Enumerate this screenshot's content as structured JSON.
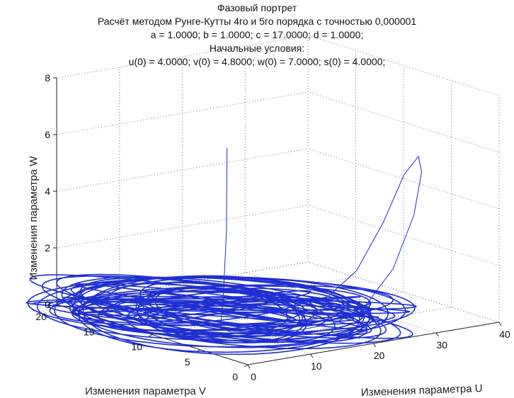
{
  "chart_data": {
    "type": "3d-line",
    "title": "Фазовый портрет",
    "subtitle_lines": [
      "Расчёт методом Рунге-Кутты 4го и 5го порядка с точностью 0,000001",
      "a = 1.0000; b = 1.0000; c = 17.0000; d = 1.0000;",
      "Начальные условия:",
      "u(0) = 4.0000; v(0) = 4.8000; w(0) = 7.0000; s(0) = 4.0000;"
    ],
    "xlabel": "Изменения параметра U",
    "ylabel": "Изменения параметра V",
    "zlabel": "Изменения параметра W",
    "xlim": [
      0,
      40
    ],
    "ylim": [
      0,
      20
    ],
    "zlim": [
      0,
      8
    ],
    "xticks": [
      "0",
      "10",
      "20",
      "30",
      "40"
    ],
    "yticks": [
      "0",
      "5",
      "10",
      "15",
      "20"
    ],
    "zticks": [
      "0",
      "2",
      "4",
      "6",
      "8"
    ],
    "grid": true,
    "line_color": "#1f2fd0",
    "series": [
      {
        "points": [
          [
            4.0,
            4.8,
            7.0
          ],
          [
            4.2,
            5.0,
            4.0
          ],
          [
            4.6,
            5.6,
            1.5
          ],
          [
            5.5,
            6.5,
            0.4
          ],
          [
            8.0,
            7.0,
            0.1
          ],
          [
            12.0,
            6.0,
            0.05
          ],
          [
            16.0,
            5.0,
            0.1
          ],
          [
            20.0,
            4.0,
            0.3
          ],
          [
            24.0,
            3.5,
            0.8
          ],
          [
            28.0,
            3.2,
            2.0
          ],
          [
            31.0,
            3.0,
            3.8
          ],
          [
            33.0,
            3.5,
            5.2
          ],
          [
            34.0,
            4.5,
            5.6
          ],
          [
            34.0,
            6.0,
            4.8
          ],
          [
            33.0,
            7.5,
            3.0
          ],
          [
            31.0,
            9.0,
            1.2
          ],
          [
            28.0,
            10.0,
            0.3
          ],
          [
            24.0,
            10.5,
            0.1
          ],
          [
            20.0,
            10.5,
            0.1
          ]
        ]
      }
    ],
    "attractor": {
      "loops": 44,
      "u_center": 11.0,
      "v_center": 10.0,
      "u_radius_range": [
        4,
        17
      ],
      "v_radius_range": [
        2,
        10
      ],
      "w_range": [
        0,
        1.3
      ]
    }
  }
}
